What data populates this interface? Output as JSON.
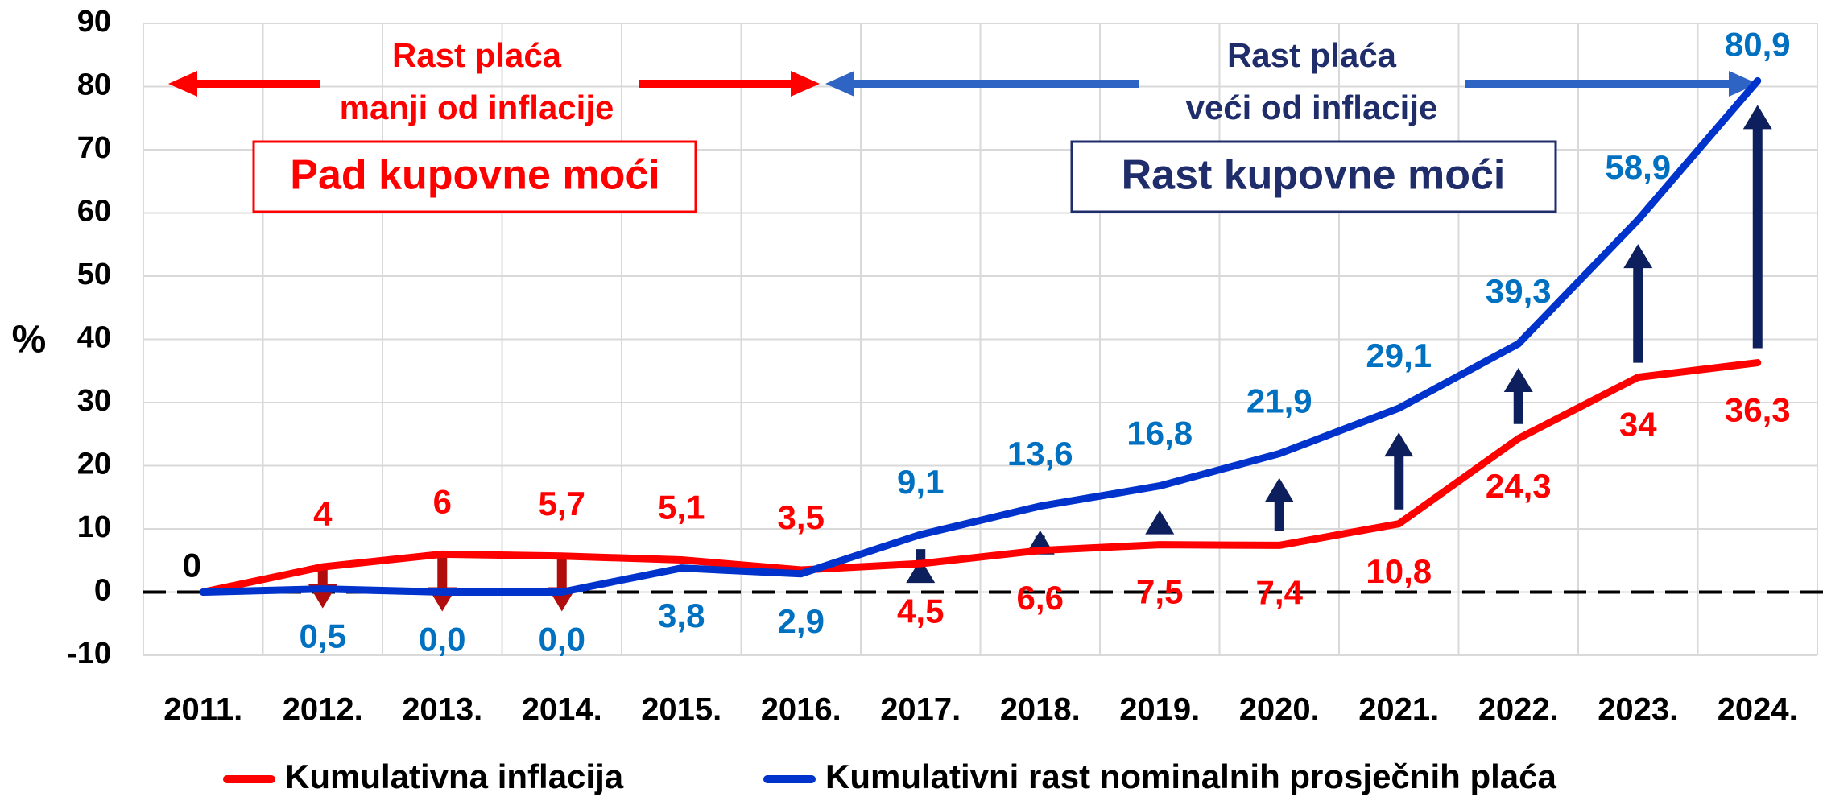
{
  "chart_data": {
    "type": "line",
    "y_label": "%",
    "categories": [
      "2011.",
      "2012.",
      "2013.",
      "2014.",
      "2015.",
      "2016.",
      "2017.",
      "2018.",
      "2019.",
      "2020.",
      "2021.",
      "2022.",
      "2023.",
      "2024."
    ],
    "series": [
      {
        "name": "Kumulativna inflacija",
        "color": "#ff0000",
        "label_color": "#ff0000",
        "values": [
          0,
          4,
          6,
          5.7,
          5.1,
          3.5,
          4.5,
          6.6,
          7.5,
          7.4,
          10.8,
          24.3,
          34,
          36.3
        ],
        "value_labels": [
          "0",
          "4",
          "6",
          "5,7",
          "5,1",
          "3,5",
          "4,5",
          "6,6",
          "7,5",
          "7,4",
          "10,8",
          "24,3",
          "34",
          "36,3"
        ]
      },
      {
        "name": "Kumulativni rast nominalnih prosječnih plaća",
        "color": "#0033cc",
        "label_color": "#0070c0",
        "values": [
          0,
          0.5,
          0.0,
          0.0,
          3.8,
          2.9,
          9.1,
          13.6,
          16.8,
          21.9,
          29.1,
          39.3,
          58.9,
          80.9
        ],
        "value_labels": [
          null,
          "0,5",
          "0,0",
          "0,0",
          "3,8",
          "2,9",
          "9,1",
          "13,6",
          "16,8",
          "21,9",
          "29,1",
          "39,3",
          "58,9",
          "80,9"
        ]
      }
    ],
    "ylim": [
      -10,
      90
    ],
    "yticks": [
      -10,
      0,
      10,
      20,
      30,
      40,
      50,
      60,
      70,
      80,
      90
    ],
    "grid": true,
    "annotations": {
      "left_line1": "Rast plaća",
      "left_line2": "manji od inflacije",
      "left_box": "Pad kupovne moći",
      "right_line1": "Rast plaća",
      "right_line2": "veći od inflacije",
      "right_box": "Rast kupovne moći"
    }
  }
}
